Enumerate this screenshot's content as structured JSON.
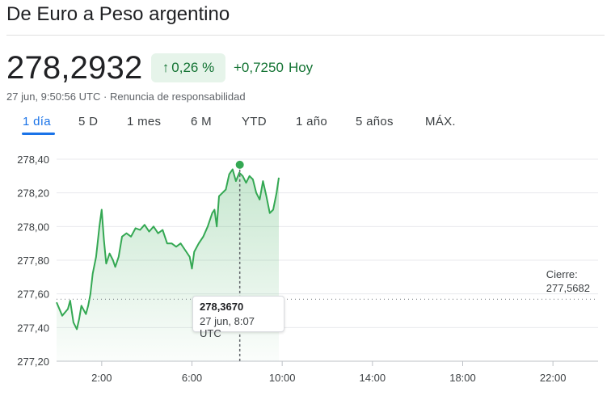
{
  "header": {
    "title": "De Euro a Peso argentino"
  },
  "quote": {
    "price": "278,2932",
    "percent_change": "0,26 %",
    "absolute_change": "+0,7250",
    "period_label": "Hoy",
    "timestamp": "27 jun, 9:50:56 UTC",
    "disclaimer": "Renuncia de responsabilidad",
    "separator": "·",
    "up_color": "#137333",
    "badge_bg": "#e6f4ea"
  },
  "tabs": [
    {
      "label": "1 día",
      "active": true
    },
    {
      "label": "5 D",
      "active": false
    },
    {
      "label": "1 mes",
      "active": false
    },
    {
      "label": "6 M",
      "active": false
    },
    {
      "label": "YTD",
      "active": false
    },
    {
      "label": "1 año",
      "active": false
    },
    {
      "label": "5 años",
      "active": false
    },
    {
      "label": "MÁX.",
      "active": false
    }
  ],
  "tooltip": {
    "value": "278,3670",
    "time": "27 jun, 8:07 UTC"
  },
  "previous_close": {
    "label": "Cierre:",
    "value": "277,5682"
  },
  "chart_data": {
    "type": "line",
    "title": "",
    "xlabel": "",
    "ylabel": "",
    "x_unit": "hours UTC",
    "xlim": [
      0.0,
      24.0
    ],
    "ylim": [
      277.2,
      278.4
    ],
    "y_ticks": [
      "278,40",
      "278,20",
      "278,00",
      "277,80",
      "277,60",
      "277,40",
      "277,20"
    ],
    "y_tick_values": [
      278.4,
      278.2,
      278.0,
      277.8,
      277.6,
      277.4,
      277.2
    ],
    "x_ticks": [
      "2:00",
      "6:00",
      "10:00",
      "14:00",
      "18:00",
      "22:00"
    ],
    "x_tick_values": [
      2,
      6,
      10,
      14,
      18,
      22
    ],
    "grid": true,
    "line_color": "#34a853",
    "previous_close_value": 277.5682,
    "highlight_point": {
      "x": 8.12,
      "y": 278.367
    },
    "series": [
      {
        "x": [
          0.0,
          0.25,
          0.5,
          0.6,
          0.75,
          0.9,
          1.0,
          1.1,
          1.3,
          1.4,
          1.5,
          1.6,
          1.75,
          1.9,
          2.0,
          2.1,
          2.2,
          2.35,
          2.5,
          2.6,
          2.75,
          2.9,
          3.1,
          3.3,
          3.5,
          3.7,
          3.9,
          4.1,
          4.3,
          4.5,
          4.7,
          4.9,
          5.1,
          5.3,
          5.5,
          5.7,
          5.9,
          6.0,
          6.1,
          6.3,
          6.5,
          6.7,
          6.9,
          7.0,
          7.1,
          7.2,
          7.35,
          7.5,
          7.65,
          7.8,
          7.95,
          8.1,
          8.25,
          8.4,
          8.55,
          8.7,
          8.85,
          9.0,
          9.15,
          9.3,
          9.45,
          9.6,
          9.75,
          9.85
        ],
        "y": [
          277.55,
          277.47,
          277.51,
          277.56,
          277.43,
          277.39,
          277.45,
          277.53,
          277.48,
          277.53,
          277.6,
          277.72,
          277.82,
          278.0,
          278.1,
          277.92,
          277.78,
          277.84,
          277.8,
          277.76,
          277.82,
          277.94,
          277.96,
          277.94,
          277.99,
          277.98,
          278.01,
          277.97,
          278.0,
          277.96,
          277.98,
          277.9,
          277.9,
          277.88,
          277.9,
          277.86,
          277.82,
          277.75,
          277.85,
          277.9,
          277.94,
          278.0,
          278.08,
          278.1,
          278.0,
          278.18,
          278.2,
          278.22,
          278.31,
          278.34,
          278.27,
          278.32,
          278.3,
          278.26,
          278.3,
          278.28,
          278.2,
          278.16,
          278.27,
          278.18,
          278.08,
          278.1,
          278.2,
          278.29
        ]
      }
    ]
  }
}
